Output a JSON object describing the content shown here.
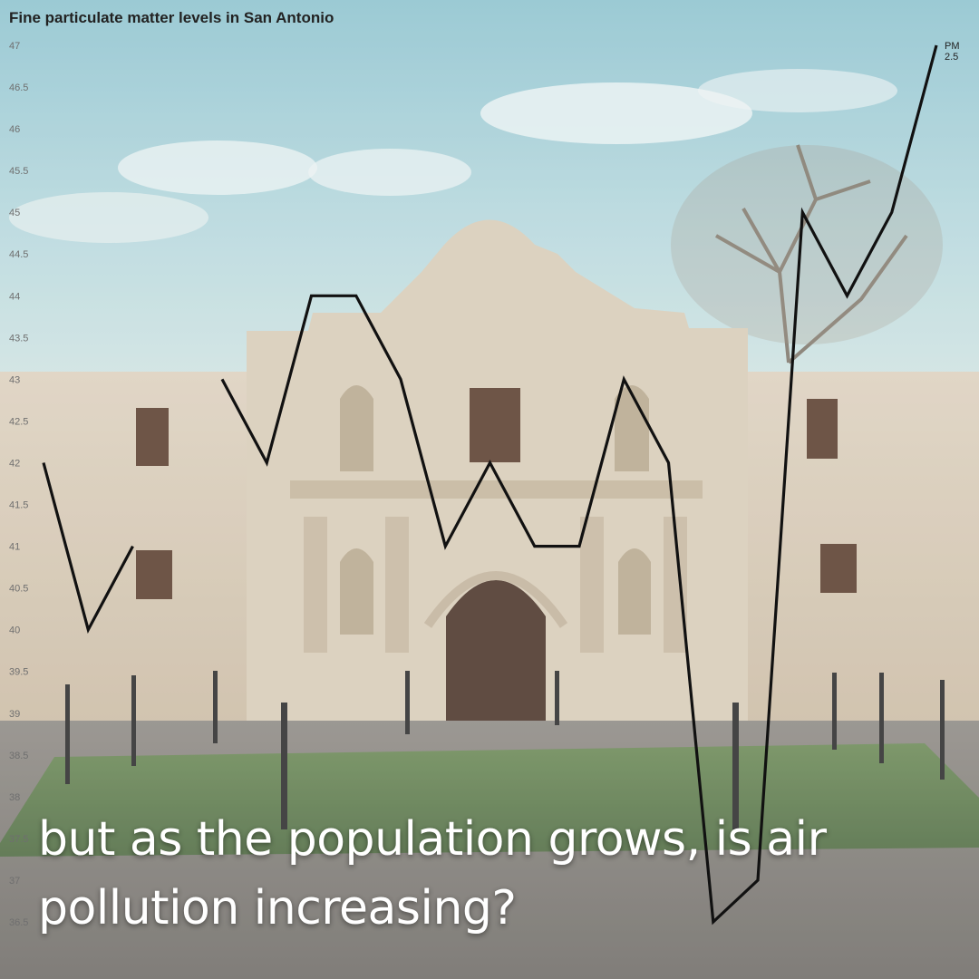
{
  "title": "Fine particulate matter levels in San Antonio",
  "caption": "but as the population grows, is air pollution increasing?",
  "chart_data": {
    "type": "line",
    "title": "Fine particulate matter levels in San Antonio",
    "xlabel": "",
    "ylabel": "",
    "ylim": [
      36.5,
      47
    ],
    "yticks": [
      "47",
      "46.5",
      "46",
      "45.5",
      "45",
      "44.5",
      "44",
      "43.5",
      "43",
      "42.5",
      "42",
      "41.5",
      "41",
      "40.5",
      "40",
      "39.5",
      "39",
      "38.5",
      "38",
      "37.5",
      "37",
      "36.5"
    ],
    "grid": false,
    "series": [
      {
        "name": "PM 2.5",
        "color": "#111111",
        "values": [
          42,
          40,
          41,
          null,
          43,
          42,
          44,
          44,
          43,
          41,
          42,
          41,
          41,
          43,
          42,
          36.5,
          37,
          45,
          44,
          45,
          47
        ]
      }
    ]
  },
  "colors": {
    "line": "#111111",
    "sky": "#9fcbd4",
    "stone": "#d9cbb6",
    "grass": "#5e7a4e"
  }
}
